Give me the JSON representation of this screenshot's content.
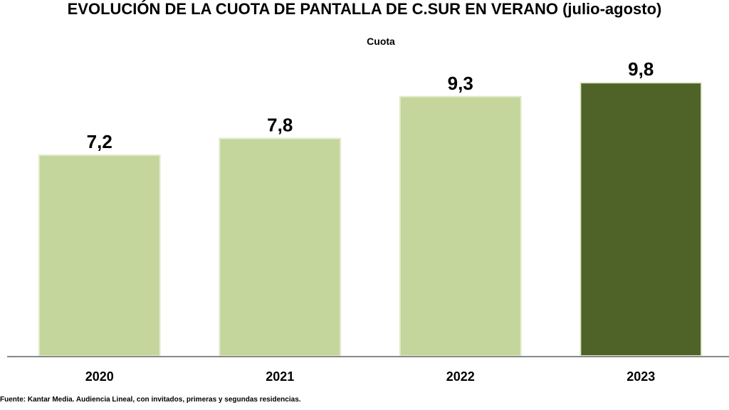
{
  "chart_data": {
    "type": "bar",
    "title": "EVOLUCIÓN DE LA CUOTA DE PANTALLA DE C.SUR EN VERANO (julio-agosto)",
    "subtitle": "Cuota",
    "categories": [
      "2020",
      "2021",
      "2022",
      "2023"
    ],
    "values": [
      7.2,
      7.8,
      9.3,
      9.8
    ],
    "value_labels": [
      "7,2",
      "7,8",
      "9,3",
      "9,8"
    ],
    "xlabel": "",
    "ylabel": "",
    "ylim": [
      0,
      10
    ],
    "grid": false,
    "colors": [
      "#c4d69b",
      "#c4d69b",
      "#c4d69b",
      "#4f6228"
    ],
    "bar_border_color": "#e2ebcd",
    "axis_color": "#888888"
  },
  "source_note": "Fuente: Kantar Media. Audiencia Lineal, con invitados, primeras y segundas residencias."
}
